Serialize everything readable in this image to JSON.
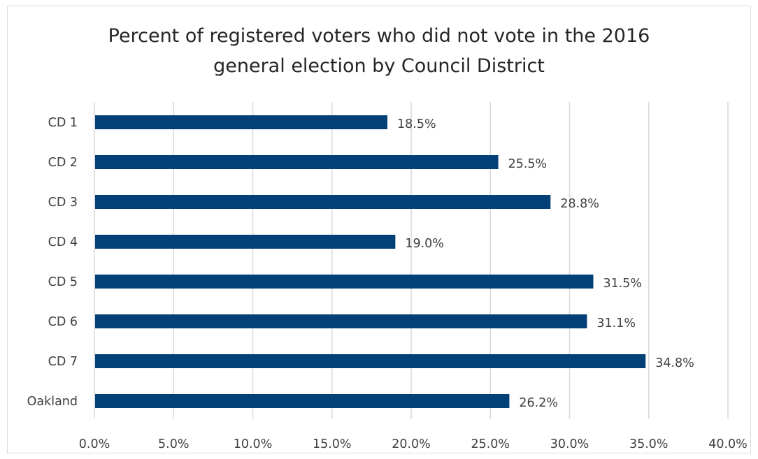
{
  "chart_data": {
    "type": "bar",
    "orientation": "horizontal",
    "title_lines": [
      "Percent of registered voters who did not vote in the 2016",
      "general election by Council District"
    ],
    "categories": [
      "CD 1",
      "CD 2",
      "CD 3",
      "CD 4",
      "CD 5",
      "CD 6",
      "CD 7",
      "Oakland"
    ],
    "values": [
      18.5,
      25.5,
      28.8,
      19.0,
      31.5,
      31.1,
      34.8,
      26.2
    ],
    "value_labels": [
      "18.5%",
      "25.5%",
      "28.8%",
      "19.0%",
      "31.5%",
      "31.1%",
      "34.8%",
      "26.2%"
    ],
    "xticks": [
      0,
      5,
      10,
      15,
      20,
      25,
      30,
      35,
      40
    ],
    "xtick_labels": [
      "0.0%",
      "5.0%",
      "10.0%",
      "15.0%",
      "20.0%",
      "25.0%",
      "30.0%",
      "35.0%",
      "40.0%"
    ],
    "xlim": [
      0,
      40
    ],
    "xlabel": "",
    "ylabel": "",
    "grid": "vertical",
    "legend": "none",
    "bar_color": "#034078",
    "grid_color": "#d9d9d9",
    "text_color": "#404040"
  }
}
